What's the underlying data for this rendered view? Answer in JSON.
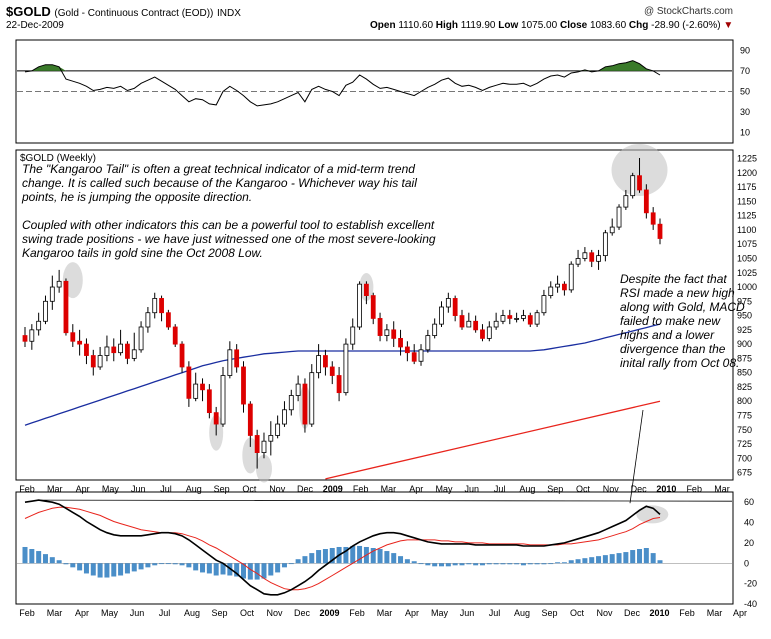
{
  "header": {
    "symbol": "$GOLD",
    "description": "(Gold - Continuous Contract (EOD))",
    "exchange": "INDX",
    "date": "22-Dec-2009",
    "logo": "@ StockCharts.com",
    "open_label": "Open",
    "open": "1110.60",
    "high_label": "High",
    "high": "1119.90",
    "low_label": "Low",
    "low": "1075.00",
    "close_label": "Close",
    "close": "1083.60",
    "chg_label": "Chg",
    "chg": "-28.90 (-2.60%)"
  },
  "main_panel_label": "$GOLD (Weekly)",
  "annotations": {
    "main_p1": "The \"Kangaroo Tail\" is often a great technical indicator of a mid-term trend change.  It is called such because of the Kangaroo - Whichever way his tail points, he is jumping the opposite direction.",
    "main_p2": "Coupled with other indicators this can be a powerful tool to establish excellent swing trade positions - we have just witnessed one of the most severe-looking Kangaroo tails in gold sine the Oct 2008 Low.",
    "right": "Despite the fact that RSI made a new high along with Gold, MACD failed to make new highs and a lower divergence than the inital rally from Oct 08."
  },
  "colors": {
    "up": "#ffffff",
    "down": "#dd0000",
    "ma_short": "#1a2ea0",
    "ma_long": "#e8241c",
    "rsi_fill": "#3a7a2a",
    "macd_hist": "#4a8ec8",
    "highlight": "#c0c0c0"
  },
  "chart_data": {
    "type": "candlestick",
    "title": "$GOLD (Weekly)",
    "x_labels_main": [
      "Feb",
      "Mar",
      "Apr",
      "May",
      "Jun",
      "Jul",
      "Aug",
      "Sep",
      "Oct",
      "Nov",
      "Dec",
      "2009",
      "Feb",
      "Mar",
      "Apr",
      "May",
      "Jun",
      "Jul",
      "Aug",
      "Sep",
      "Oct",
      "Nov",
      "Dec",
      "2010",
      "Feb",
      "Mar"
    ],
    "x_labels_macd": [
      "Feb",
      "Mar",
      "Apr",
      "May",
      "Jun",
      "Jul",
      "Aug",
      "Sep",
      "Oct",
      "Nov",
      "Dec",
      "2009",
      "Feb",
      "Mar",
      "Apr",
      "May",
      "Jun",
      "Jul",
      "Aug",
      "Sep",
      "Oct",
      "Nov",
      "Dec",
      "2010",
      "Feb",
      "Mar",
      "Apr"
    ],
    "price_axis": {
      "ylim": [
        662,
        1240
      ],
      "ticks": [
        675,
        700,
        725,
        750,
        775,
        800,
        825,
        850,
        875,
        900,
        925,
        950,
        975,
        1000,
        1025,
        1050,
        1075,
        1100,
        1125,
        1150,
        1175,
        1200,
        1225
      ]
    },
    "rsi_axis": {
      "ylim": [
        0,
        100
      ],
      "ticks": [
        10,
        30,
        50,
        70,
        90
      ],
      "levels": [
        70,
        50
      ]
    },
    "macd_axis": {
      "ylim": [
        -40,
        70
      ],
      "ticks": [
        -40,
        -20,
        0,
        20,
        40,
        60
      ]
    },
    "candles": [
      {
        "o": 915,
        "c": 905,
        "h": 930,
        "l": 895
      },
      {
        "o": 905,
        "c": 925,
        "h": 935,
        "l": 890
      },
      {
        "o": 925,
        "c": 940,
        "h": 955,
        "l": 915
      },
      {
        "o": 940,
        "c": 975,
        "h": 985,
        "l": 935
      },
      {
        "o": 975,
        "c": 1000,
        "h": 1020,
        "l": 960
      },
      {
        "o": 1000,
        "c": 1010,
        "h": 1030,
        "l": 990
      },
      {
        "o": 1010,
        "c": 920,
        "h": 1015,
        "l": 915
      },
      {
        "o": 920,
        "c": 905,
        "h": 935,
        "l": 895
      },
      {
        "o": 905,
        "c": 900,
        "h": 925,
        "l": 880
      },
      {
        "o": 900,
        "c": 880,
        "h": 910,
        "l": 865
      },
      {
        "o": 880,
        "c": 860,
        "h": 890,
        "l": 845
      },
      {
        "o": 860,
        "c": 880,
        "h": 895,
        "l": 855
      },
      {
        "o": 880,
        "c": 895,
        "h": 915,
        "l": 870
      },
      {
        "o": 895,
        "c": 885,
        "h": 910,
        "l": 870
      },
      {
        "o": 885,
        "c": 900,
        "h": 925,
        "l": 880
      },
      {
        "o": 900,
        "c": 875,
        "h": 905,
        "l": 865
      },
      {
        "o": 875,
        "c": 890,
        "h": 920,
        "l": 870
      },
      {
        "o": 890,
        "c": 930,
        "h": 940,
        "l": 885
      },
      {
        "o": 930,
        "c": 955,
        "h": 965,
        "l": 920
      },
      {
        "o": 955,
        "c": 980,
        "h": 990,
        "l": 945
      },
      {
        "o": 980,
        "c": 955,
        "h": 985,
        "l": 940
      },
      {
        "o": 955,
        "c": 930,
        "h": 960,
        "l": 925
      },
      {
        "o": 930,
        "c": 900,
        "h": 935,
        "l": 895
      },
      {
        "o": 900,
        "c": 860,
        "h": 905,
        "l": 850
      },
      {
        "o": 860,
        "c": 805,
        "h": 870,
        "l": 790
      },
      {
        "o": 805,
        "c": 830,
        "h": 850,
        "l": 800
      },
      {
        "o": 830,
        "c": 820,
        "h": 840,
        "l": 800
      },
      {
        "o": 820,
        "c": 780,
        "h": 830,
        "l": 770
      },
      {
        "o": 780,
        "c": 760,
        "h": 790,
        "l": 740
      },
      {
        "o": 760,
        "c": 845,
        "h": 860,
        "l": 755
      },
      {
        "o": 845,
        "c": 890,
        "h": 905,
        "l": 840
      },
      {
        "o": 890,
        "c": 860,
        "h": 900,
        "l": 850
      },
      {
        "o": 860,
        "c": 795,
        "h": 870,
        "l": 780
      },
      {
        "o": 795,
        "c": 740,
        "h": 800,
        "l": 720
      },
      {
        "o": 740,
        "c": 710,
        "h": 750,
        "l": 682
      },
      {
        "o": 710,
        "c": 730,
        "h": 745,
        "l": 700
      },
      {
        "o": 730,
        "c": 740,
        "h": 765,
        "l": 705
      },
      {
        "o": 740,
        "c": 760,
        "h": 775,
        "l": 735
      },
      {
        "o": 760,
        "c": 785,
        "h": 800,
        "l": 755
      },
      {
        "o": 785,
        "c": 810,
        "h": 820,
        "l": 775
      },
      {
        "o": 810,
        "c": 830,
        "h": 845,
        "l": 800
      },
      {
        "o": 830,
        "c": 760,
        "h": 840,
        "l": 745
      },
      {
        "o": 760,
        "c": 850,
        "h": 865,
        "l": 755
      },
      {
        "o": 850,
        "c": 880,
        "h": 900,
        "l": 840
      },
      {
        "o": 880,
        "c": 860,
        "h": 890,
        "l": 845
      },
      {
        "o": 860,
        "c": 845,
        "h": 870,
        "l": 830
      },
      {
        "o": 845,
        "c": 815,
        "h": 860,
        "l": 800
      },
      {
        "o": 815,
        "c": 900,
        "h": 910,
        "l": 810
      },
      {
        "o": 900,
        "c": 930,
        "h": 945,
        "l": 890
      },
      {
        "o": 930,
        "c": 1005,
        "h": 1010,
        "l": 925
      },
      {
        "o": 1005,
        "c": 985,
        "h": 1010,
        "l": 970
      },
      {
        "o": 985,
        "c": 945,
        "h": 990,
        "l": 935
      },
      {
        "o": 945,
        "c": 915,
        "h": 955,
        "l": 905
      },
      {
        "o": 915,
        "c": 925,
        "h": 935,
        "l": 905
      },
      {
        "o": 925,
        "c": 910,
        "h": 940,
        "l": 895
      },
      {
        "o": 910,
        "c": 895,
        "h": 925,
        "l": 880
      },
      {
        "o": 895,
        "c": 885,
        "h": 905,
        "l": 870
      },
      {
        "o": 885,
        "c": 870,
        "h": 900,
        "l": 865
      },
      {
        "o": 870,
        "c": 890,
        "h": 900,
        "l": 862
      },
      {
        "o": 890,
        "c": 915,
        "h": 925,
        "l": 885
      },
      {
        "o": 915,
        "c": 935,
        "h": 945,
        "l": 910
      },
      {
        "o": 935,
        "c": 965,
        "h": 975,
        "l": 930
      },
      {
        "o": 965,
        "c": 980,
        "h": 990,
        "l": 955
      },
      {
        "o": 980,
        "c": 950,
        "h": 985,
        "l": 940
      },
      {
        "o": 950,
        "c": 930,
        "h": 960,
        "l": 925
      },
      {
        "o": 930,
        "c": 940,
        "h": 955,
        "l": 930
      },
      {
        "o": 940,
        "c": 925,
        "h": 950,
        "l": 920
      },
      {
        "o": 925,
        "c": 910,
        "h": 935,
        "l": 905
      },
      {
        "o": 910,
        "c": 930,
        "h": 940,
        "l": 905
      },
      {
        "o": 930,
        "c": 940,
        "h": 955,
        "l": 925
      },
      {
        "o": 940,
        "c": 950,
        "h": 960,
        "l": 935
      },
      {
        "o": 950,
        "c": 945,
        "h": 960,
        "l": 935
      },
      {
        "o": 945,
        "c": 945,
        "h": 955,
        "l": 938
      },
      {
        "o": 945,
        "c": 950,
        "h": 960,
        "l": 940
      },
      {
        "o": 950,
        "c": 935,
        "h": 955,
        "l": 930
      },
      {
        "o": 935,
        "c": 955,
        "h": 960,
        "l": 930
      },
      {
        "o": 955,
        "c": 985,
        "h": 995,
        "l": 950
      },
      {
        "o": 985,
        "c": 1000,
        "h": 1010,
        "l": 980
      },
      {
        "o": 1000,
        "c": 1005,
        "h": 1020,
        "l": 990
      },
      {
        "o": 1005,
        "c": 995,
        "h": 1010,
        "l": 985
      },
      {
        "o": 995,
        "c": 1040,
        "h": 1045,
        "l": 990
      },
      {
        "o": 1040,
        "c": 1050,
        "h": 1065,
        "l": 1035
      },
      {
        "o": 1050,
        "c": 1060,
        "h": 1070,
        "l": 1045
      },
      {
        "o": 1060,
        "c": 1045,
        "h": 1065,
        "l": 1035
      },
      {
        "o": 1045,
        "c": 1055,
        "h": 1065,
        "l": 1030
      },
      {
        "o": 1055,
        "c": 1095,
        "h": 1100,
        "l": 1045
      },
      {
        "o": 1095,
        "c": 1105,
        "h": 1120,
        "l": 1090
      },
      {
        "o": 1105,
        "c": 1140,
        "h": 1145,
        "l": 1100
      },
      {
        "o": 1140,
        "c": 1160,
        "h": 1170,
        "l": 1135
      },
      {
        "o": 1160,
        "c": 1195,
        "h": 1200,
        "l": 1155
      },
      {
        "o": 1195,
        "c": 1170,
        "h": 1226,
        "l": 1165
      },
      {
        "o": 1170,
        "c": 1130,
        "h": 1180,
        "l": 1120
      },
      {
        "o": 1130,
        "c": 1110,
        "h": 1140,
        "l": 1100
      },
      {
        "o": 1110,
        "c": 1085,
        "h": 1120,
        "l": 1075
      }
    ],
    "rsi": [
      69,
      70,
      74,
      76,
      76,
      74,
      62,
      60,
      58,
      55,
      51,
      52,
      54,
      53,
      55,
      51,
      53,
      58,
      61,
      64,
      60,
      56,
      52,
      46,
      40,
      43,
      42,
      38,
      37,
      50,
      55,
      51,
      46,
      40,
      36,
      37,
      38,
      40,
      43,
      46,
      49,
      40,
      52,
      55,
      52,
      50,
      46,
      56,
      59,
      66,
      62,
      57,
      53,
      54,
      52,
      50,
      48,
      46,
      50,
      54,
      57,
      61,
      63,
      58,
      55,
      56,
      54,
      51,
      54,
      56,
      58,
      57,
      57,
      58,
      55,
      58,
      62,
      65,
      66,
      64,
      68,
      69,
      71,
      69,
      70,
      74,
      75,
      77,
      78,
      80,
      77,
      72,
      70,
      66
    ],
    "macd": [
      60,
      61,
      62,
      61,
      60,
      58,
      54,
      50,
      46,
      41,
      37,
      33,
      30,
      28,
      27,
      27,
      27,
      27,
      28,
      29,
      30,
      30,
      29,
      27,
      23,
      18,
      13,
      8,
      3,
      0,
      -5,
      -10,
      -16,
      -22,
      -26,
      -30,
      -31,
      -31,
      -29,
      -26,
      -22,
      -18,
      -13,
      -7,
      -2,
      3,
      8,
      12,
      17,
      21,
      24,
      27,
      29,
      30,
      30,
      29,
      27,
      25,
      23,
      21,
      20,
      19,
      19,
      19,
      19,
      19,
      18,
      18,
      18,
      18,
      18,
      18,
      18,
      17,
      17,
      17,
      17,
      18,
      19,
      20,
      22,
      24,
      26,
      28,
      30,
      33,
      36,
      39,
      42,
      47,
      52,
      56,
      54,
      48
    ],
    "macd_signal": [
      44,
      47,
      50,
      52,
      54,
      55,
      55,
      54,
      53,
      51,
      49,
      47,
      44,
      41,
      39,
      37,
      35,
      33,
      32,
      31,
      30,
      30,
      30,
      29,
      27,
      25,
      22,
      18,
      15,
      11,
      7,
      3,
      -1,
      -6,
      -10,
      -15,
      -19,
      -22,
      -25,
      -26,
      -26,
      -25,
      -23,
      -20,
      -16,
      -12,
      -8,
      -4,
      0,
      4,
      8,
      12,
      15,
      18,
      20,
      22,
      23,
      23,
      23,
      23,
      23,
      22,
      22,
      21,
      21,
      20,
      20,
      20,
      19,
      19,
      19,
      19,
      19,
      19,
      18,
      18,
      18,
      18,
      18,
      19,
      19,
      20,
      21,
      22,
      23,
      25,
      27,
      29,
      31,
      34,
      38,
      41,
      44,
      45
    ],
    "ma_short": [
      758,
      762,
      766,
      770,
      774,
      778,
      782,
      786,
      790,
      794,
      798,
      802,
      806,
      810,
      814,
      818,
      822,
      826,
      830,
      834,
      838,
      842,
      846,
      850,
      854,
      858,
      862,
      865,
      868,
      871,
      873,
      875,
      877,
      879,
      881,
      883,
      884,
      885,
      886,
      887,
      888,
      888,
      888,
      888,
      888,
      888,
      888,
      888,
      888,
      888,
      888,
      888,
      888,
      888,
      888,
      888,
      888,
      888,
      888,
      888,
      888,
      888,
      888,
      888,
      888,
      888,
      888,
      888,
      888,
      888,
      888,
      888,
      888,
      888,
      888,
      889,
      890,
      892,
      894,
      896,
      898,
      900,
      902,
      905,
      908,
      911,
      914,
      917,
      920,
      923,
      926,
      929,
      932,
      935
    ],
    "ma_long": [
      null,
      null,
      null,
      null,
      null,
      null,
      null,
      null,
      null,
      null,
      null,
      null,
      null,
      null,
      null,
      null,
      null,
      null,
      null,
      null,
      null,
      null,
      null,
      null,
      null,
      null,
      null,
      null,
      null,
      null,
      null,
      null,
      null,
      null,
      null,
      null,
      null,
      null,
      null,
      null,
      null,
      null,
      null,
      null,
      null,
      null,
      null,
      null,
      null,
      null,
      null,
      null,
      null,
      null,
      null,
      null,
      null,
      null,
      null,
      null,
      null,
      null,
      null,
      null,
      null,
      null,
      null,
      null,
      null,
      null,
      null,
      null,
      null,
      null,
      null,
      null,
      null,
      null,
      null,
      null,
      null,
      null,
      null,
      null,
      null,
      null,
      null,
      null,
      null,
      null,
      null,
      null,
      null,
      null
    ]
  }
}
